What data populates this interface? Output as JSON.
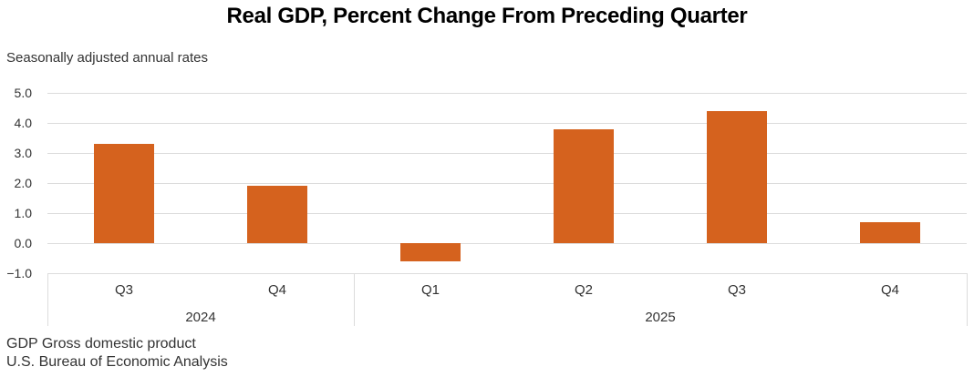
{
  "chart_data": {
    "type": "bar",
    "title": "Real GDP, Percent Change From Preceding Quarter",
    "subtitle": "Seasonally adjusted annual rates",
    "categories": [
      "Q3",
      "Q4",
      "Q1",
      "Q2",
      "Q3",
      "Q4"
    ],
    "year_groups": [
      {
        "label": "2024",
        "span": 2
      },
      {
        "label": "2025",
        "span": 4
      }
    ],
    "values": [
      3.3,
      1.9,
      -0.6,
      3.8,
      4.4,
      0.7
    ],
    "y_ticks": [
      5.0,
      4.0,
      3.0,
      2.0,
      1.0,
      0.0,
      -1.0
    ],
    "y_tick_labels": [
      "5.0",
      "4.0",
      "3.0",
      "2.0",
      "1.0",
      "0.0",
      "−1.0"
    ],
    "ylim": [
      -1.0,
      5.0
    ],
    "grid": true,
    "legend": "none",
    "bar_color": "#D5621E",
    "gridline_color": "#DCDCDC",
    "axis_text_color": "#333333",
    "footnotes": [
      "GDP Gross domestic product",
      "U.S. Bureau of Economic Analysis"
    ]
  }
}
